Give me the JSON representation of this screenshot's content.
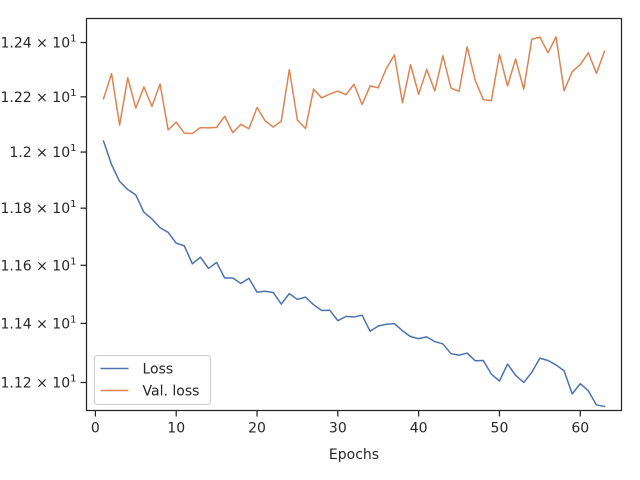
{
  "chart_data": {
    "type": "line",
    "title": "",
    "xlabel": "Epochs",
    "ylabel": "",
    "xlim": [
      -1.1,
      65.1
    ],
    "ylim": [
      11.1065,
      12.4895
    ],
    "y_scale": "log",
    "grid": false,
    "legend_position": "lower-left",
    "x_ticks": [
      0,
      10,
      20,
      30,
      40,
      50,
      60
    ],
    "y_ticks": [
      {
        "value": 11.2,
        "mantissa": "1.12",
        "base": "10",
        "exponent": "1"
      },
      {
        "value": 11.4,
        "mantissa": "1.14",
        "base": "10",
        "exponent": "1"
      },
      {
        "value": 11.6,
        "mantissa": "1.16",
        "base": "10",
        "exponent": "1"
      },
      {
        "value": 11.8,
        "mantissa": "1.18",
        "base": "10",
        "exponent": "1"
      },
      {
        "value": 12.0,
        "mantissa": "1.2",
        "base": "10",
        "exponent": "1"
      },
      {
        "value": 12.2,
        "mantissa": "1.22",
        "base": "10",
        "exponent": "1"
      },
      {
        "value": 12.4,
        "mantissa": "1.24",
        "base": "10",
        "exponent": "1"
      }
    ],
    "x": [
      1,
      2,
      3,
      4,
      5,
      6,
      7,
      8,
      9,
      10,
      11,
      12,
      13,
      14,
      15,
      16,
      17,
      18,
      19,
      20,
      21,
      22,
      23,
      24,
      25,
      26,
      27,
      28,
      29,
      30,
      31,
      32,
      33,
      34,
      35,
      36,
      37,
      38,
      39,
      40,
      41,
      42,
      43,
      44,
      45,
      46,
      47,
      48,
      49,
      50,
      51,
      52,
      53,
      54,
      55,
      56,
      57,
      58,
      59,
      60,
      61,
      62,
      63
    ],
    "series": [
      {
        "name": "Loss",
        "color": "#4c72b0",
        "values": [
          12.04,
          11.955,
          11.895,
          11.866,
          11.847,
          11.786,
          11.762,
          11.731,
          11.715,
          11.677,
          11.668,
          11.605,
          11.628,
          11.589,
          11.61,
          11.556,
          11.556,
          11.537,
          11.555,
          11.507,
          11.51,
          11.506,
          11.466,
          11.502,
          11.482,
          11.49,
          11.464,
          11.444,
          11.445,
          11.409,
          11.424,
          11.422,
          11.428,
          11.373,
          11.391,
          11.397,
          11.399,
          11.375,
          11.355,
          11.348,
          11.354,
          11.338,
          11.33,
          11.297,
          11.292,
          11.299,
          11.273,
          11.274,
          11.228,
          11.205,
          11.262,
          11.224,
          11.2,
          11.234,
          11.282,
          11.274,
          11.259,
          11.239,
          11.162,
          11.196,
          11.172,
          11.125,
          11.12
        ]
      },
      {
        "name": "Val. loss",
        "color": "#dd8452",
        "values": [
          12.192,
          12.285,
          12.097,
          12.27,
          12.159,
          12.236,
          12.165,
          12.247,
          12.08,
          12.108,
          12.068,
          12.067,
          12.088,
          12.087,
          12.089,
          12.129,
          12.07,
          12.1,
          12.084,
          12.161,
          12.113,
          12.09,
          12.112,
          12.3,
          12.115,
          12.085,
          12.228,
          12.196,
          12.21,
          12.221,
          12.208,
          12.246,
          12.172,
          12.24,
          12.233,
          12.304,
          12.354,
          12.178,
          12.318,
          12.209,
          12.3,
          12.222,
          12.351,
          12.232,
          12.22,
          12.384,
          12.26,
          12.19,
          12.186,
          12.356,
          12.24,
          12.339,
          12.228,
          12.412,
          12.42,
          12.362,
          12.421,
          12.222,
          12.292,
          12.319,
          12.362,
          12.286,
          12.368
        ]
      }
    ]
  }
}
